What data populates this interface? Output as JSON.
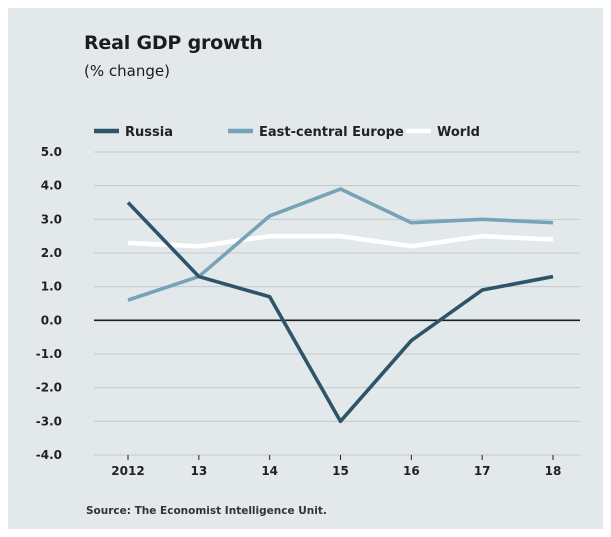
{
  "chart_data": {
    "type": "line",
    "title": "Real GDP growth",
    "subtitle": "(% change)",
    "source": "Source: The Economist Intelligence Unit.",
    "categories": [
      "2012",
      "13",
      "14",
      "15",
      "16",
      "17",
      "18"
    ],
    "ylim": [
      -4.0,
      5.0
    ],
    "yticks": [
      "5.0",
      "4.0",
      "3.0",
      "2.0",
      "1.0",
      "0.0",
      "-1.0",
      "-2.0",
      "-3.0",
      "-4.0"
    ],
    "grid": true,
    "legend_position": "top",
    "series": [
      {
        "name": "Russia",
        "color": "#2e5468",
        "values": [
          3.5,
          1.3,
          0.7,
          -3.0,
          -0.6,
          0.9,
          1.3
        ]
      },
      {
        "name": "East-central Europe",
        "color": "#76a4b6",
        "values": [
          0.6,
          1.3,
          3.1,
          3.9,
          2.9,
          3.0,
          2.9
        ]
      },
      {
        "name": "World",
        "color": "#ffffff",
        "values": [
          2.3,
          2.2,
          2.5,
          2.5,
          2.2,
          2.5,
          2.4
        ]
      }
    ]
  }
}
